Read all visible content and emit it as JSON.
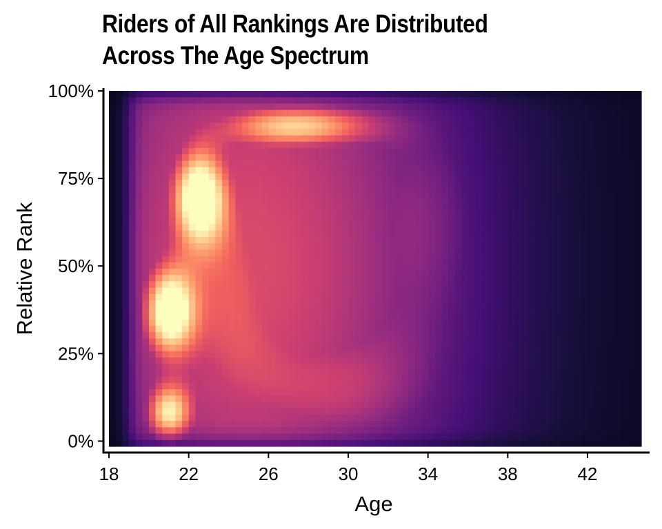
{
  "chart_data": {
    "type": "heatmap",
    "title": [
      "Riders of All Rankings Are Distributed",
      "Across The Age Spectrum"
    ],
    "xlabel": "Age",
    "ylabel": "Relative Rank",
    "x_ticks": [
      18,
      22,
      26,
      30,
      34,
      38,
      42
    ],
    "y_ticks": [
      "0%",
      "25%",
      "50%",
      "75%",
      "100%"
    ],
    "y_tick_values": [
      0,
      0.25,
      0.5,
      0.75,
      1.0
    ],
    "xlim": [
      18,
      44.7
    ],
    "ylim": [
      -0.015,
      1.0
    ],
    "colormap": [
      "#000004",
      "#180f3d",
      "#440f76",
      "#721f81",
      "#9e2f7f",
      "#cd4071",
      "#f1605d",
      "#fd9668",
      "#feca8d",
      "#fcfdbf"
    ],
    "density_peaks": [
      {
        "age": 21,
        "rank": 0.37,
        "intensity": 1.0
      },
      {
        "age": 22.5,
        "rank": 0.7,
        "intensity": 0.97
      },
      {
        "age": 21,
        "rank": 0.08,
        "intensity": 0.86
      },
      {
        "age": 27.5,
        "rank": 0.9,
        "intensity": 0.82
      },
      {
        "age": 24,
        "rank": 0.45,
        "intensity": 0.55
      },
      {
        "age": 29,
        "rank": 0.15,
        "intensity": 0.4
      },
      {
        "age": 33,
        "rank": 0.6,
        "intensity": 0.3
      }
    ],
    "grid": false
  }
}
